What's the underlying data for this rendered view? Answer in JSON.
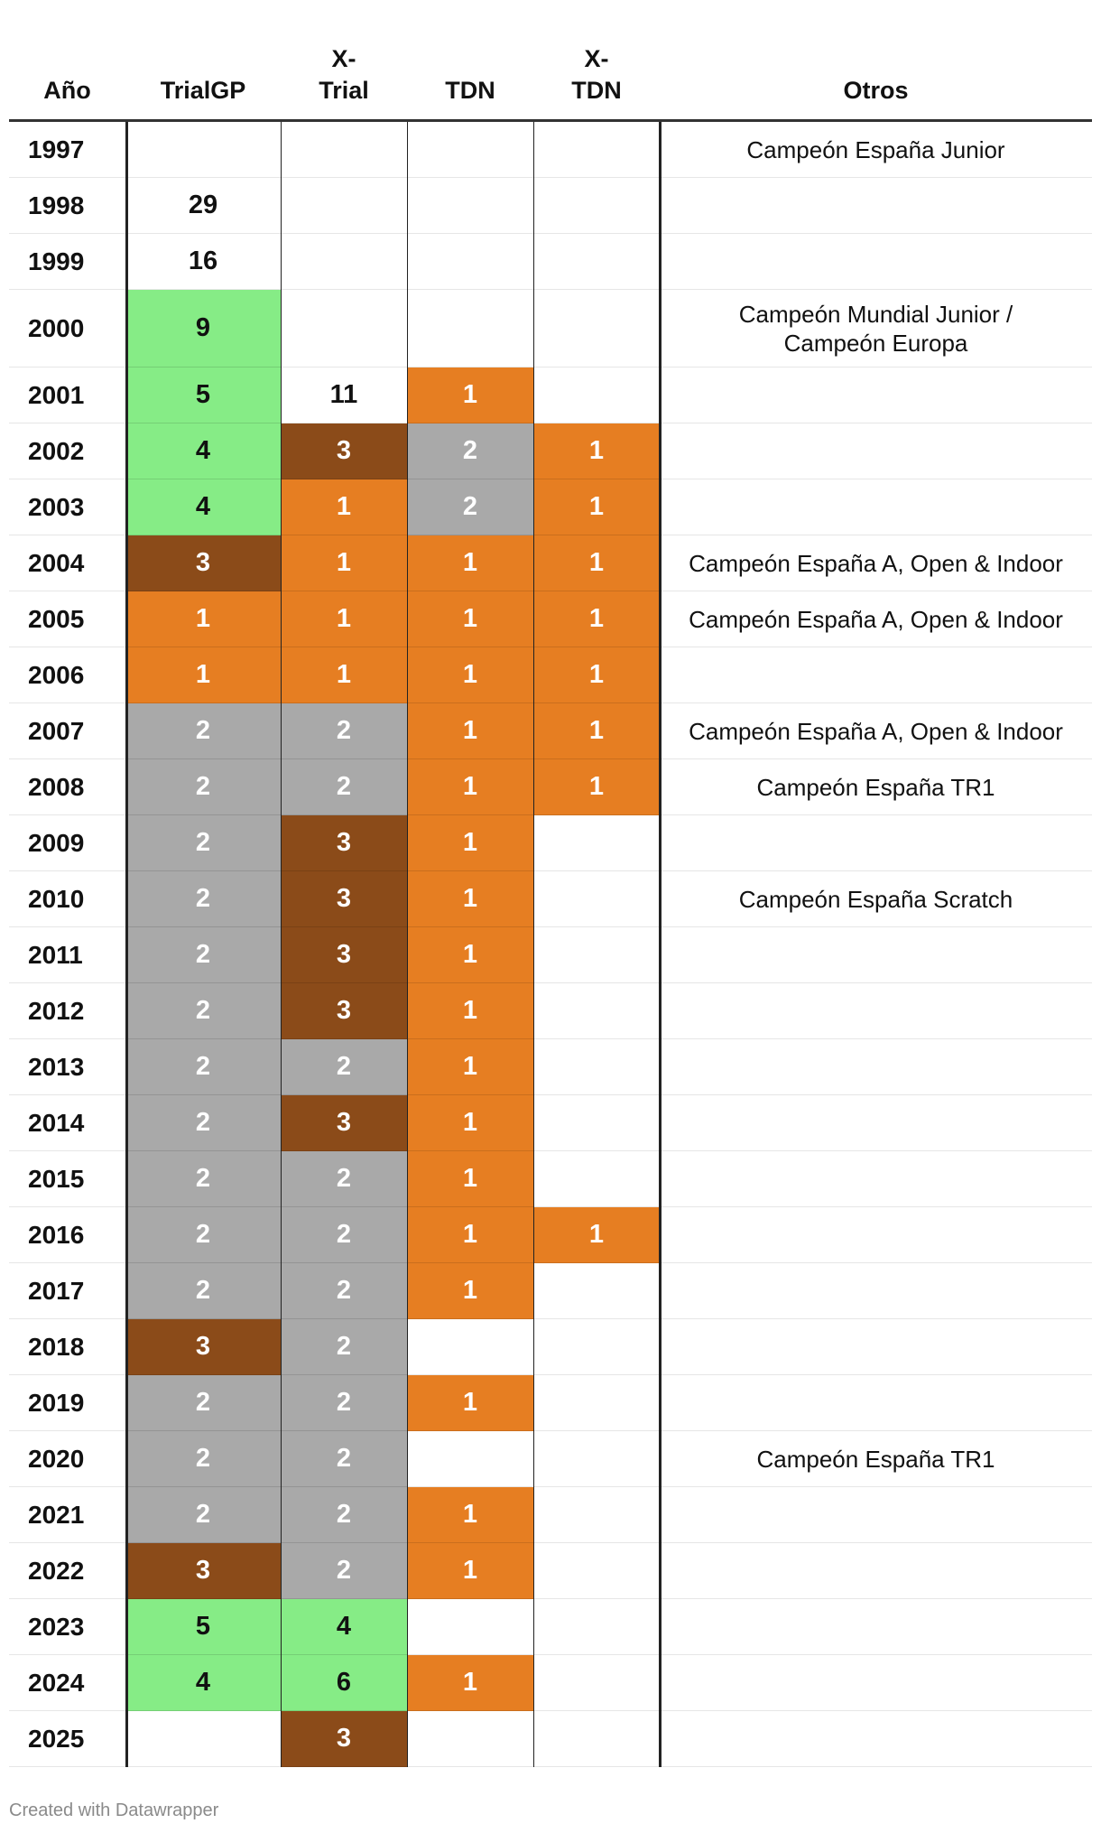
{
  "chart_data": {
    "type": "table",
    "columns": [
      "Año",
      "TrialGP",
      "X-Trial",
      "TDN",
      "X-TDN",
      "Otros"
    ],
    "colors": {
      "green": "#86ec86",
      "brown": "#8b4b19",
      "gray": "#a9a9a9",
      "orange": "#e67e22",
      "white": "#ffffff"
    },
    "rows": [
      {
        "year": "1997",
        "trialgp": "",
        "xtrial": "",
        "tdn": "",
        "xtdn": "",
        "otros": "Campeón España Junior"
      },
      {
        "year": "1998",
        "trialgp": "29",
        "xtrial": "",
        "tdn": "",
        "xtdn": "",
        "otros": ""
      },
      {
        "year": "1999",
        "trialgp": "16",
        "xtrial": "",
        "tdn": "",
        "xtdn": "",
        "otros": ""
      },
      {
        "year": "2000",
        "trialgp": "9",
        "xtrial": "",
        "tdn": "",
        "xtdn": "",
        "otros": "Campeón Mundial Junior / Campeón Europa"
      },
      {
        "year": "2001",
        "trialgp": "5",
        "xtrial": "11",
        "tdn": "1",
        "xtdn": "",
        "otros": ""
      },
      {
        "year": "2002",
        "trialgp": "4",
        "xtrial": "3",
        "tdn": "2",
        "xtdn": "1",
        "otros": ""
      },
      {
        "year": "2003",
        "trialgp": "4",
        "xtrial": "1",
        "tdn": "2",
        "xtdn": "1",
        "otros": ""
      },
      {
        "year": "2004",
        "trialgp": "3",
        "xtrial": "1",
        "tdn": "1",
        "xtdn": "1",
        "otros": "Campeón España A, Open & Indoor"
      },
      {
        "year": "2005",
        "trialgp": "1",
        "xtrial": "1",
        "tdn": "1",
        "xtdn": "1",
        "otros": "Campeón España A, Open & Indoor"
      },
      {
        "year": "2006",
        "trialgp": "1",
        "xtrial": "1",
        "tdn": "1",
        "xtdn": "1",
        "otros": ""
      },
      {
        "year": "2007",
        "trialgp": "2",
        "xtrial": "2",
        "tdn": "1",
        "xtdn": "1",
        "otros": "Campeón España A, Open & Indoor"
      },
      {
        "year": "2008",
        "trialgp": "2",
        "xtrial": "2",
        "tdn": "1",
        "xtdn": "1",
        "otros": "Campeón España TR1"
      },
      {
        "year": "2009",
        "trialgp": "2",
        "xtrial": "3",
        "tdn": "1",
        "xtdn": "",
        "otros": ""
      },
      {
        "year": "2010",
        "trialgp": "2",
        "xtrial": "3",
        "tdn": "1",
        "xtdn": "",
        "otros": "Campeón España Scratch"
      },
      {
        "year": "2011",
        "trialgp": "2",
        "xtrial": "3",
        "tdn": "1",
        "xtdn": "",
        "otros": ""
      },
      {
        "year": "2012",
        "trialgp": "2",
        "xtrial": "3",
        "tdn": "1",
        "xtdn": "",
        "otros": ""
      },
      {
        "year": "2013",
        "trialgp": "2",
        "xtrial": "2",
        "tdn": "1",
        "xtdn": "",
        "otros": ""
      },
      {
        "year": "2014",
        "trialgp": "2",
        "xtrial": "3",
        "tdn": "1",
        "xtdn": "",
        "otros": ""
      },
      {
        "year": "2015",
        "trialgp": "2",
        "xtrial": "2",
        "tdn": "1",
        "xtdn": "",
        "otros": ""
      },
      {
        "year": "2016",
        "trialgp": "2",
        "xtrial": "2",
        "tdn": "1",
        "xtdn": "1",
        "otros": ""
      },
      {
        "year": "2017",
        "trialgp": "2",
        "xtrial": "2",
        "tdn": "1",
        "xtdn": "",
        "otros": ""
      },
      {
        "year": "2018",
        "trialgp": "3",
        "xtrial": "2",
        "tdn": "",
        "xtdn": "",
        "otros": ""
      },
      {
        "year": "2019",
        "trialgp": "2",
        "xtrial": "2",
        "tdn": "1",
        "xtdn": "",
        "otros": ""
      },
      {
        "year": "2020",
        "trialgp": "2",
        "xtrial": "2",
        "tdn": "",
        "xtdn": "",
        "otros": "Campeón España TR1"
      },
      {
        "year": "2021",
        "trialgp": "2",
        "xtrial": "2",
        "tdn": "1",
        "xtdn": "",
        "otros": ""
      },
      {
        "year": "2022",
        "trialgp": "3",
        "xtrial": "2",
        "tdn": "1",
        "xtdn": "",
        "otros": ""
      },
      {
        "year": "2023",
        "trialgp": "5",
        "xtrial": "4",
        "tdn": "",
        "xtdn": "",
        "otros": ""
      },
      {
        "year": "2024",
        "trialgp": "4",
        "xtrial": "6",
        "tdn": "1",
        "xtdn": "",
        "otros": ""
      },
      {
        "year": "2025",
        "trialgp": "",
        "xtrial": "3",
        "tdn": "",
        "xtdn": "",
        "otros": ""
      }
    ]
  },
  "header": {
    "year": "Año",
    "trialgp": "TrialGP",
    "xtrial_l1": "X-",
    "xtrial_l2": "Trial",
    "tdn": "TDN",
    "xtdn_l1": "X-",
    "xtdn_l2": "TDN",
    "otros": "Otros"
  },
  "footer": "Created with Datawrapper"
}
